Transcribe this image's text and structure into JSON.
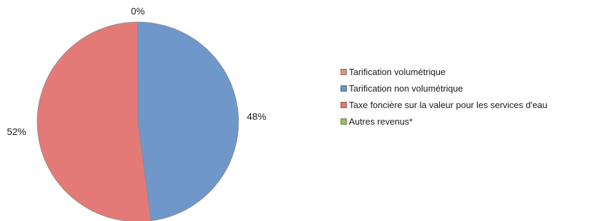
{
  "chart_data": {
    "type": "pie",
    "title": "",
    "slices": [
      {
        "label": "Tarification volumétrique",
        "value": 0,
        "display": "0%",
        "color": "#d99a7c"
      },
      {
        "label": "Tarification non volumétrique",
        "value": 48,
        "display": "48%",
        "color": "#6f97c9"
      },
      {
        "label": "Taxe foncière sur la valeur pour les services d'eau",
        "value": 52,
        "display": "52%",
        "color": "#e47a77"
      },
      {
        "label": "Autres revenus*",
        "value": 0,
        "display": "",
        "color": "#9bbe6a"
      }
    ],
    "legend_position": "right"
  }
}
